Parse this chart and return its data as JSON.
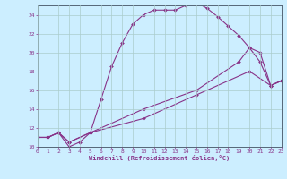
{
  "xlabel": "Windchill (Refroidissement éolien,°C)",
  "background_color": "#cceeff",
  "grid_color": "#aacccc",
  "line_color": "#883388",
  "spine_color": "#556677",
  "xlim": [
    0,
    23
  ],
  "ylim": [
    10,
    25
  ],
  "yticks": [
    10,
    12,
    14,
    16,
    18,
    20,
    22,
    24
  ],
  "xticks": [
    0,
    1,
    2,
    3,
    4,
    5,
    6,
    7,
    8,
    9,
    10,
    11,
    12,
    13,
    14,
    15,
    16,
    17,
    18,
    19,
    20,
    21,
    22,
    23
  ],
  "curve1_x": [
    0,
    1,
    2,
    3,
    4,
    5,
    6,
    7,
    8,
    9,
    10,
    11,
    12,
    13,
    14,
    15,
    16,
    17,
    18,
    19,
    20,
    21,
    22,
    23
  ],
  "curve1_y": [
    11,
    11,
    11.5,
    10,
    10.5,
    11.5,
    15,
    18.5,
    21,
    23,
    24,
    24.5,
    24.5,
    24.5,
    25,
    25.3,
    24.7,
    23.8,
    22.8,
    21.8,
    20.5,
    19,
    16.5,
    17
  ],
  "curve2_x": [
    0,
    1,
    2,
    3,
    5,
    10,
    15,
    19,
    20,
    21,
    22,
    23
  ],
  "curve2_y": [
    11,
    11,
    11.5,
    10.5,
    11.5,
    14,
    16,
    19,
    20.5,
    20,
    16.5,
    17
  ],
  "curve3_x": [
    0,
    1,
    2,
    3,
    5,
    10,
    15,
    20,
    22,
    23
  ],
  "curve3_y": [
    11,
    11,
    11.5,
    10.5,
    11.5,
    13,
    15.5,
    18,
    16.5,
    17
  ]
}
